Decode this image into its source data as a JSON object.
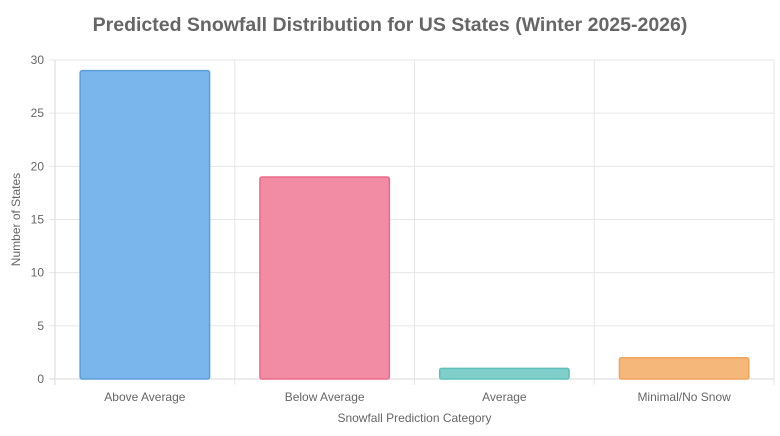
{
  "chart_data": {
    "type": "bar",
    "title": "Predicted Snowfall Distribution for US States (Winter 2025-2026)",
    "xlabel": "Snowfall Prediction Category",
    "ylabel": "Number of States",
    "categories": [
      "Above Average",
      "Below Average",
      "Average",
      "Minimal/No Snow"
    ],
    "values": [
      29,
      19,
      1,
      2
    ],
    "ylim": [
      0,
      30
    ],
    "yticks": [
      0,
      5,
      10,
      15,
      20,
      25,
      30
    ],
    "grid": true,
    "legend": "none",
    "colors": {
      "fill": [
        "#7ab6eb",
        "#f18ca4",
        "#80cfcb",
        "#f5b87a"
      ],
      "stroke": [
        "#5a9fdc",
        "#eb6c8a",
        "#5fc0bb",
        "#f0a45c"
      ]
    }
  }
}
